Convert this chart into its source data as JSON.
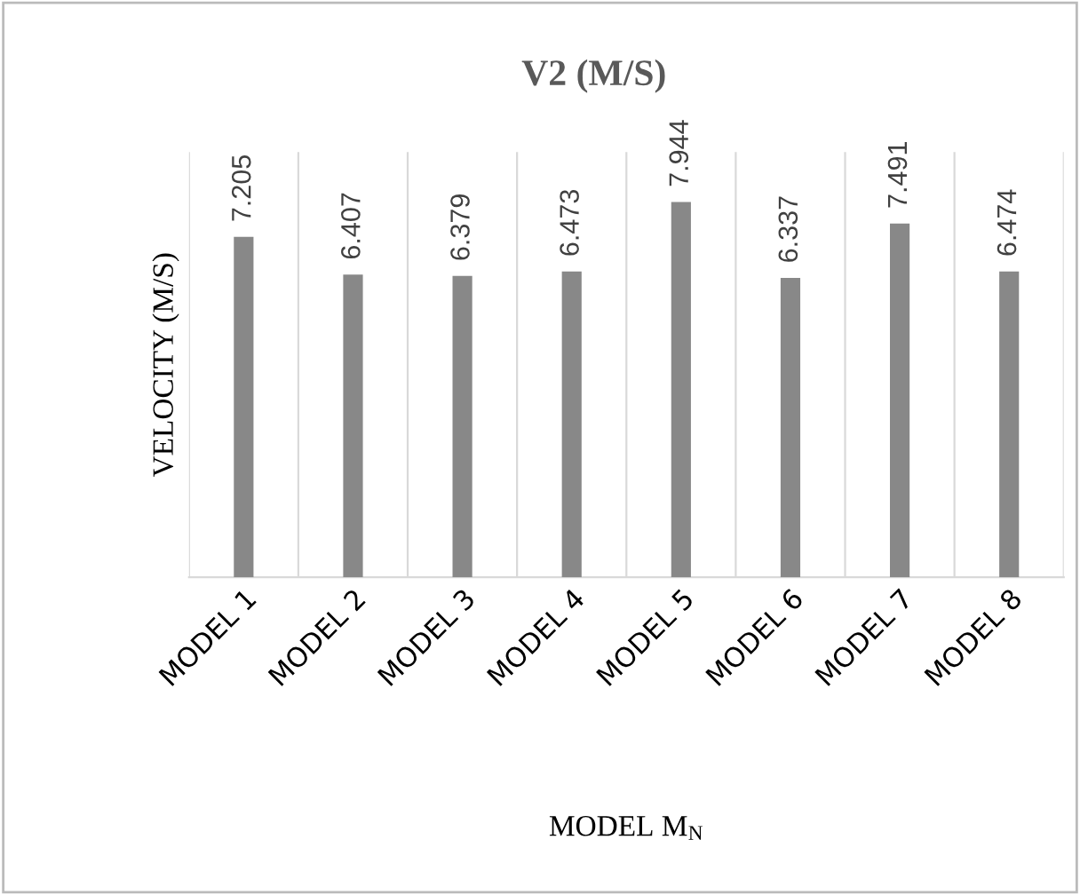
{
  "chart_data": {
    "type": "bar",
    "title": "V2 (M/S)",
    "xlabel": "MODEL M$_{N}$",
    "ylabel": "VELOCITY (M/S)",
    "categories": [
      "MODEL 1",
      "MODEL 2",
      "MODEL 3",
      "MODEL 4",
      "MODEL 5",
      "MODEL 6",
      "MODEL 7",
      "MODEL 8"
    ],
    "values": [
      7.205,
      6.407,
      6.379,
      6.473,
      7.944,
      6.337,
      7.491,
      6.474
    ],
    "color": "#888888",
    "ylim": [
      0,
      9
    ],
    "data_labels": true,
    "grid": "x",
    "tick_labels": "x"
  }
}
